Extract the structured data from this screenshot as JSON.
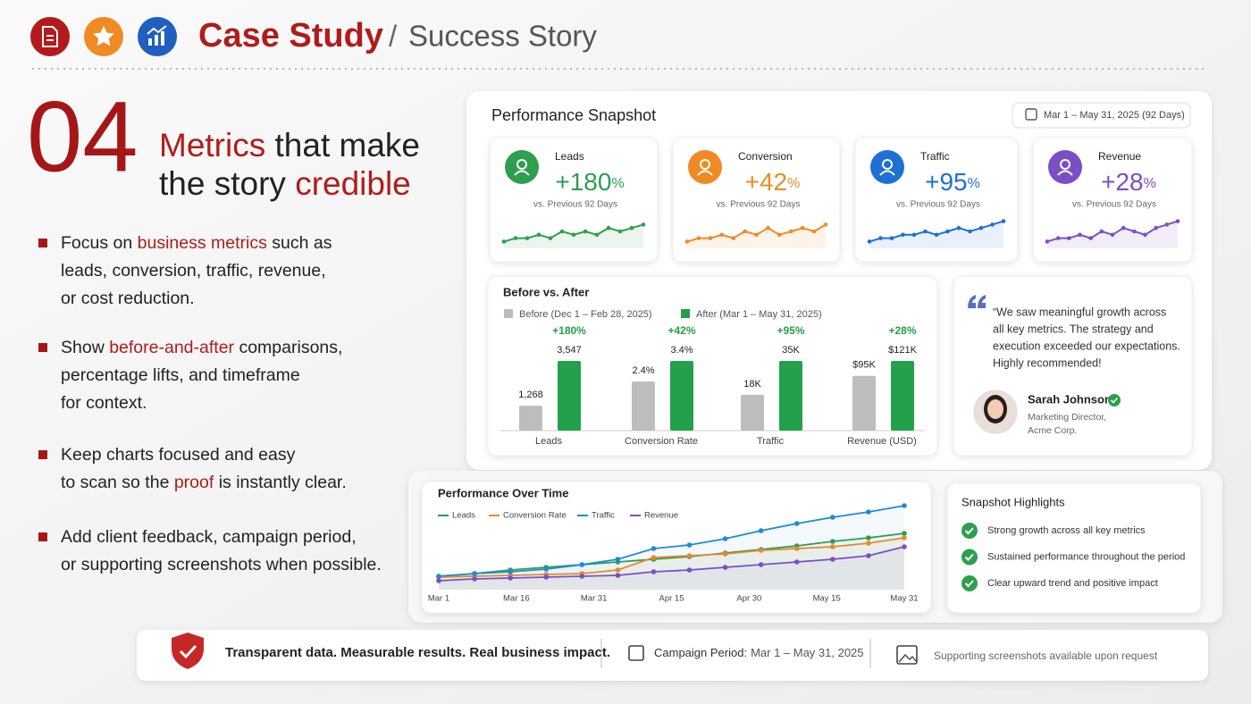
{
  "header": {
    "title": "Case Study",
    "separator": "/",
    "subtitle": "Success Story"
  },
  "section": {
    "number": "04",
    "heading": [
      [
        {
          "text": "Metrics",
          "accent": true
        },
        {
          "text": " that make"
        }
      ],
      [
        {
          "text": "the story "
        },
        {
          "text": "credible",
          "accent": true
        }
      ]
    ],
    "bullets": [
      [
        [
          {
            "text": "Focus on "
          },
          {
            "text": "business metrics",
            "accent": true
          },
          {
            "text": " such as"
          }
        ],
        [
          {
            "text": "leads, conversion, traffic, revenue,"
          }
        ],
        [
          {
            "text": "or cost reduction."
          }
        ]
      ],
      [
        [
          {
            "text": "Show "
          },
          {
            "text": "before-and-after",
            "accent": true
          },
          {
            "text": " comparisons,"
          }
        ],
        [
          {
            "text": "percentage lifts, and timeframe"
          }
        ],
        [
          {
            "text": "for context."
          }
        ]
      ],
      [
        [
          {
            "text": "Keep charts focused and easy"
          }
        ],
        [
          {
            "text": "to scan so the "
          },
          {
            "text": "proof",
            "accent": true
          },
          {
            "text": " is instantly clear."
          }
        ]
      ],
      [
        [
          {
            "text": "Add client feedback, campaign period,"
          }
        ],
        [
          {
            "text": "or supporting screenshots when possible."
          }
        ]
      ]
    ]
  },
  "snapshot": {
    "title": "Performance Snapshot",
    "period": "Mar 1 – May 31, 2025 (92 Days)",
    "kpis": [
      {
        "label": "Leads",
        "change": "+180",
        "unit": "%",
        "comparison": "vs. Previous 92 Days",
        "color": "#2e9e4f",
        "sparkline": {
          "type": "line",
          "values": [
            2,
            3,
            3,
            4,
            3,
            5,
            4,
            5,
            4,
            6,
            5,
            6,
            7
          ],
          "ylim": [
            0,
            10
          ]
        }
      },
      {
        "label": "Conversion",
        "change": "+42",
        "unit": "%",
        "comparison": "vs. Previous 92 Days",
        "color": "#f08a24",
        "sparkline": {
          "type": "line",
          "values": [
            2,
            3,
            3,
            4,
            3,
            5,
            4,
            6,
            4,
            5,
            6,
            5,
            7
          ],
          "ylim": [
            0,
            10
          ]
        }
      },
      {
        "label": "Traffic",
        "change": "+95",
        "unit": "%",
        "comparison": "vs. Previous 92 Days",
        "color": "#1f6fd6",
        "sparkline": {
          "type": "line",
          "values": [
            2,
            3,
            3,
            4,
            4,
            5,
            4,
            5,
            6,
            5,
            6,
            7,
            8
          ],
          "ylim": [
            0,
            10
          ]
        }
      },
      {
        "label": "Revenue",
        "change": "+28",
        "unit": "%",
        "comparison": "vs. Previous 92 Days",
        "color": "#7b4fc4",
        "sparkline": {
          "type": "line",
          "values": [
            2,
            3,
            3,
            4,
            3,
            5,
            4,
            6,
            5,
            4,
            6,
            7,
            8
          ],
          "ylim": [
            0,
            10
          ]
        }
      }
    ],
    "before_after": {
      "type": "bar",
      "title": "Before vs. After",
      "categories": [
        "Leads",
        "Conversion Rate",
        "Traffic",
        "Revenue (USD)"
      ],
      "series": [
        {
          "name": "Before (Dec 1 – Feb 28, 2025)",
          "color": "#bdbdbd",
          "values": [
            1268,
            2.4,
            18000,
            95000
          ],
          "value_labels": [
            "1,268",
            "2.4%",
            "18K",
            "$95K"
          ]
        },
        {
          "name": "After (Mar 1 – May 31, 2025)",
          "color": "#22a04b",
          "values": [
            3547,
            3.4,
            35000,
            121000
          ],
          "value_labels": [
            "3,547",
            "3.4%",
            "35K",
            "$121K"
          ]
        }
      ],
      "lifts": [
        "+180%",
        "+42%",
        "+95%",
        "+28%"
      ]
    },
    "testimonial": {
      "lines": [
        "“We saw meaningful growth across",
        "all key metrics. The strategy and",
        "execution exceeded our expectations.",
        "Highly recommended!"
      ],
      "name": "Sarah Johnson",
      "role": "Marketing Director,",
      "company": "Acme Corp."
    }
  },
  "over_time": {
    "type": "line",
    "title": "Performance Over Time",
    "x_labels": [
      "Mar 1",
      "Mar 16",
      "Mar 31",
      "Apr 15",
      "Apr 30",
      "May 15",
      "May 31"
    ],
    "ylim": [
      0,
      100
    ],
    "series": [
      {
        "name": "Leads",
        "color": "#2e9e4f",
        "values": [
          15,
          18,
          22,
          25,
          28,
          31,
          34,
          37,
          41,
          45,
          49,
          54,
          58,
          63
        ]
      },
      {
        "name": "Conversion Rate",
        "color": "#f08a24",
        "values": [
          14,
          15,
          16,
          17,
          18,
          22,
          36,
          38,
          40,
          44,
          46,
          48,
          52,
          58
        ]
      },
      {
        "name": "Traffic",
        "color": "#1f8ad6",
        "values": [
          15,
          18,
          20,
          23,
          28,
          34,
          46,
          50,
          57,
          66,
          74,
          81,
          87,
          94
        ]
      },
      {
        "name": "Revenue",
        "color": "#7b4fc4",
        "values": [
          10,
          12,
          13,
          14,
          15,
          16,
          20,
          22,
          25,
          28,
          31,
          34,
          38,
          48
        ]
      }
    ]
  },
  "highlights": {
    "title": "Snapshot Highlights",
    "items": [
      "Strong growth across all key metrics",
      "Sustained performance throughout the period",
      "Clear upward trend and positive impact"
    ]
  },
  "footer": {
    "tagline": "Transparent data. Measurable results. Real business impact.",
    "period_label": "Campaign Period:",
    "period": "Mar 1 – May 31, 2025",
    "note": "Supporting screenshots available upon request"
  }
}
